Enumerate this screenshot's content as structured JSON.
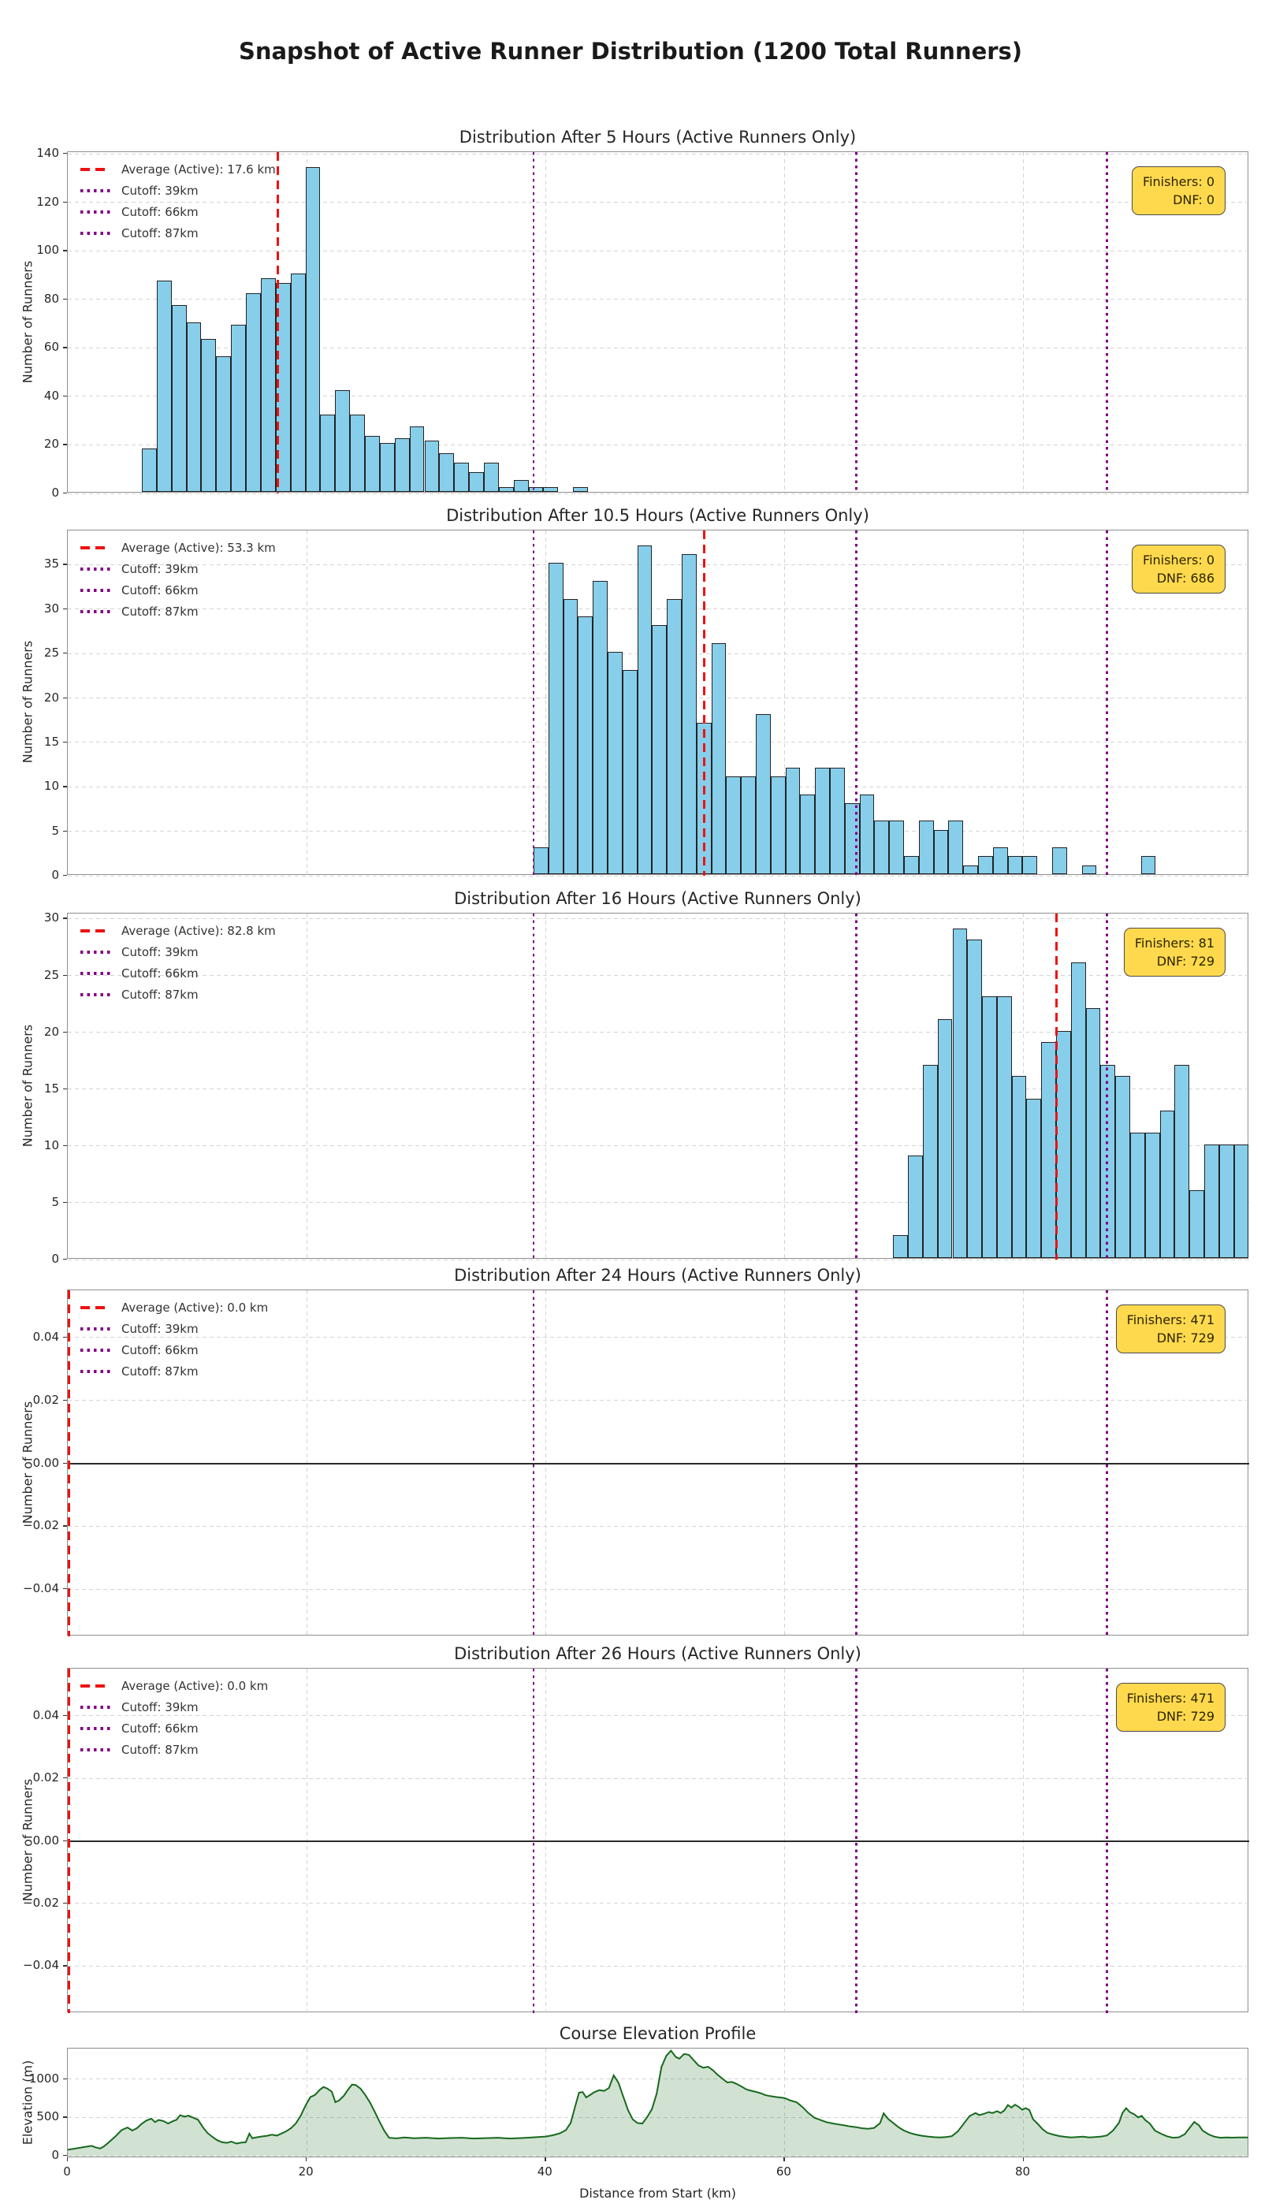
{
  "figure": {
    "title": "Snapshot of Active Runner Distribution (1200 Total Runners)",
    "total_runners": 1200
  },
  "axis": {
    "x_min_km": 0,
    "x_max_km": 98.9,
    "cutoffs_km": [
      39,
      66,
      87
    ],
    "x_grid_km": [
      20,
      40,
      60,
      80
    ]
  },
  "colors": {
    "bar_fill": "#87CEEB",
    "bar_edge": "#232323",
    "average_line": "#ee1111",
    "cutoff_line": "#800080",
    "box_bg": "#FFD94D",
    "area_line": "#17691d",
    "area_fill": "#2f7d32",
    "grid": "#d4d4d4",
    "spine": "#8f8f8f"
  },
  "chart_data": [
    {
      "type": "histogram",
      "title": "Distribution After 5 Hours (Active Runners Only)",
      "ylabel": "Number of Runners",
      "ylim": [
        0,
        140.7
      ],
      "y_ticks": [
        0,
        20,
        40,
        60,
        80,
        100,
        120,
        140
      ],
      "y_tick_labels": [
        "0",
        "20",
        "40",
        "60",
        "80",
        "100",
        "120",
        "140"
      ],
      "bin_start_km": 6.2,
      "bin_width_km": 1.245,
      "values": [
        18,
        87,
        77,
        70,
        63,
        56,
        69,
        82,
        88,
        86,
        90,
        134,
        32,
        42,
        32,
        23,
        20,
        22,
        27,
        21,
        16,
        12,
        8,
        12,
        2,
        5,
        2,
        2,
        0,
        2
      ],
      "average_km": 17.6,
      "legend": [
        "Average (Active): 17.6 km",
        "Cutoff: 39km",
        "Cutoff: 66km",
        "Cutoff: 87km"
      ],
      "finishers_label": "Finishers: 0",
      "dnf_label": "DNF: 0",
      "zero_line": false
    },
    {
      "type": "histogram",
      "title": "Distribution After 10.5 Hours (Active Runners Only)",
      "ylabel": "Number of Runners",
      "ylim": [
        0,
        38.85
      ],
      "y_ticks": [
        0,
        5,
        10,
        15,
        20,
        25,
        30,
        35
      ],
      "y_tick_labels": [
        "0",
        "5",
        "10",
        "15",
        "20",
        "25",
        "30",
        "35"
      ],
      "bin_start_km": 39.0,
      "bin_width_km": 1.24,
      "values": [
        3,
        35,
        31,
        29,
        33,
        25,
        23,
        37,
        28,
        31,
        36,
        17,
        26,
        11,
        11,
        18,
        11,
        12,
        9,
        12,
        12,
        8,
        9,
        6,
        6,
        2,
        6,
        5,
        6,
        1,
        2,
        3,
        2,
        2,
        0,
        3,
        0,
        1,
        0,
        0,
        0,
        2
      ],
      "average_km": 53.3,
      "legend": [
        "Average (Active): 53.3 km",
        "Cutoff: 39km",
        "Cutoff: 66km",
        "Cutoff: 87km"
      ],
      "finishers_label": "Finishers: 0",
      "dnf_label": "DNF: 686",
      "zero_line": false
    },
    {
      "type": "histogram",
      "title": "Distribution After 16 Hours (Active Runners Only)",
      "ylabel": "Number of Runners",
      "ylim": [
        0,
        30.45
      ],
      "y_ticks": [
        0,
        5,
        10,
        15,
        20,
        25,
        30
      ],
      "y_tick_labels": [
        "0",
        "5",
        "10",
        "15",
        "20",
        "25",
        "30"
      ],
      "bin_start_km": 69.1,
      "bin_width_km": 1.24,
      "values": [
        2,
        9,
        17,
        21,
        29,
        28,
        23,
        23,
        16,
        14,
        19,
        20,
        26,
        22,
        17,
        16,
        11,
        11,
        13,
        17,
        6,
        10,
        10,
        10
      ],
      "average_km": 82.8,
      "legend": [
        "Average (Active): 82.8 km",
        "Cutoff: 39km",
        "Cutoff: 66km",
        "Cutoff: 87km"
      ],
      "finishers_label": "Finishers: 81",
      "dnf_label": "DNF: 729",
      "zero_line": false
    },
    {
      "type": "histogram",
      "title": "Distribution After 24 Hours (Active Runners Only)",
      "ylabel": "Number of Runners",
      "ylim": [
        -0.055,
        0.055
      ],
      "y_ticks": [
        -0.04,
        -0.02,
        0,
        0.02,
        0.04
      ],
      "y_tick_labels": [
        "−0.04",
        "−0.02",
        "0.00",
        "0.02",
        "0.04"
      ],
      "bin_start_km": 0,
      "bin_width_km": 1,
      "values": [],
      "average_km": 0.0,
      "legend": [
        "Average (Active): 0.0 km",
        "Cutoff: 39km",
        "Cutoff: 66km",
        "Cutoff: 87km"
      ],
      "finishers_label": "Finishers: 471",
      "dnf_label": "DNF: 729",
      "zero_line": true
    },
    {
      "type": "histogram",
      "title": "Distribution After 26 Hours (Active Runners Only)",
      "ylabel": "Number of Runners",
      "ylim": [
        -0.055,
        0.055
      ],
      "y_ticks": [
        -0.04,
        -0.02,
        0,
        0.02,
        0.04
      ],
      "y_tick_labels": [
        "−0.04",
        "−0.02",
        "0.00",
        "0.02",
        "0.04"
      ],
      "bin_start_km": 0,
      "bin_width_km": 1,
      "values": [],
      "average_km": 0.0,
      "legend": [
        "Average (Active): 0.0 km",
        "Cutoff: 39km",
        "Cutoff: 66km",
        "Cutoff: 87km"
      ],
      "finishers_label": "Finishers: 471",
      "dnf_label": "DNF: 729",
      "zero_line": true
    },
    {
      "type": "area",
      "title": "Course Elevation Profile",
      "xlabel": "Distance from Start (km)",
      "ylabel": "Elevation (m)",
      "ylim": [
        -30,
        1400
      ],
      "y_ticks": [
        0,
        500,
        1000
      ],
      "y_tick_labels": [
        "0",
        "500",
        "1000"
      ],
      "x_ticks": [
        0,
        20,
        40,
        60,
        80
      ],
      "x_tick_labels": [
        "0",
        "20",
        "40",
        "60",
        "80"
      ],
      "points": [
        [
          0,
          80
        ],
        [
          0.5,
          92
        ],
        [
          1,
          105
        ],
        [
          1.5,
          118
        ],
        [
          2,
          130
        ],
        [
          2.3,
          112
        ],
        [
          2.7,
          95
        ],
        [
          3,
          120
        ],
        [
          3.5,
          185
        ],
        [
          4,
          255
        ],
        [
          4.5,
          335
        ],
        [
          5,
          370
        ],
        [
          5.4,
          330
        ],
        [
          5.8,
          362
        ],
        [
          6.2,
          420
        ],
        [
          6.6,
          462
        ],
        [
          7,
          485
        ],
        [
          7.3,
          440
        ],
        [
          7.6,
          468
        ],
        [
          8,
          455
        ],
        [
          8.4,
          422
        ],
        [
          8.8,
          452
        ],
        [
          9.1,
          470
        ],
        [
          9.4,
          530
        ],
        [
          9.8,
          512
        ],
        [
          10.1,
          525
        ],
        [
          10.5,
          498
        ],
        [
          10.9,
          472
        ],
        [
          11.3,
          375
        ],
        [
          11.7,
          298
        ],
        [
          12.1,
          248
        ],
        [
          12.5,
          205
        ],
        [
          12.9,
          178
        ],
        [
          13.3,
          170
        ],
        [
          13.7,
          186
        ],
        [
          14.1,
          160
        ],
        [
          14.5,
          172
        ],
        [
          14.9,
          178
        ],
        [
          15.2,
          290
        ],
        [
          15.45,
          228
        ],
        [
          15.8,
          242
        ],
        [
          16.2,
          252
        ],
        [
          16.7,
          262
        ],
        [
          17.1,
          276
        ],
        [
          17.5,
          264
        ],
        [
          17.9,
          292
        ],
        [
          18.3,
          322
        ],
        [
          18.7,
          362
        ],
        [
          19.1,
          425
        ],
        [
          19.5,
          525
        ],
        [
          19.9,
          655
        ],
        [
          20.3,
          765
        ],
        [
          20.7,
          795
        ],
        [
          21.1,
          862
        ],
        [
          21.4,
          898
        ],
        [
          21.7,
          880
        ],
        [
          22.1,
          838
        ],
        [
          22.4,
          700
        ],
        [
          22.7,
          722
        ],
        [
          23.1,
          782
        ],
        [
          23.5,
          872
        ],
        [
          23.8,
          930
        ],
        [
          24.1,
          925
        ],
        [
          24.5,
          878
        ],
        [
          24.9,
          795
        ],
        [
          25.3,
          695
        ],
        [
          25.7,
          575
        ],
        [
          26.1,
          445
        ],
        [
          26.5,
          325
        ],
        [
          26.9,
          235
        ],
        [
          27.5,
          228
        ],
        [
          28.2,
          240
        ],
        [
          29,
          230
        ],
        [
          30,
          236
        ],
        [
          31,
          226
        ],
        [
          32,
          232
        ],
        [
          33,
          236
        ],
        [
          34,
          226
        ],
        [
          35,
          231
        ],
        [
          36,
          236
        ],
        [
          37,
          226
        ],
        [
          38,
          232
        ],
        [
          39,
          242
        ],
        [
          40,
          252
        ],
        [
          40.6,
          268
        ],
        [
          41.2,
          295
        ],
        [
          41.7,
          335
        ],
        [
          42.1,
          430
        ],
        [
          42.5,
          660
        ],
        [
          42.8,
          825
        ],
        [
          43.1,
          832
        ],
        [
          43.4,
          762
        ],
        [
          43.7,
          792
        ],
        [
          44.1,
          832
        ],
        [
          44.5,
          858
        ],
        [
          44.9,
          848
        ],
        [
          45.3,
          885
        ],
        [
          45.7,
          1050
        ],
        [
          46.1,
          955
        ],
        [
          46.5,
          775
        ],
        [
          46.9,
          595
        ],
        [
          47.3,
          475
        ],
        [
          47.7,
          428
        ],
        [
          48.1,
          422
        ],
        [
          48.5,
          505
        ],
        [
          48.9,
          610
        ],
        [
          49.3,
          810
        ],
        [
          49.7,
          1160
        ],
        [
          50.1,
          1305
        ],
        [
          50.5,
          1372
        ],
        [
          50.9,
          1290
        ],
        [
          51.2,
          1268
        ],
        [
          51.6,
          1330
        ],
        [
          52,
          1318
        ],
        [
          52.4,
          1248
        ],
        [
          52.8,
          1180
        ],
        [
          53.2,
          1150
        ],
        [
          53.6,
          1162
        ],
        [
          54,
          1118
        ],
        [
          54.4,
          1058
        ],
        [
          54.8,
          1008
        ],
        [
          55.2,
          958
        ],
        [
          55.6,
          965
        ],
        [
          56,
          938
        ],
        [
          56.4,
          905
        ],
        [
          56.8,
          868
        ],
        [
          57.2,
          850
        ],
        [
          57.6,
          835
        ],
        [
          58,
          818
        ],
        [
          58.4,
          792
        ],
        [
          58.8,
          780
        ],
        [
          59.2,
          770
        ],
        [
          59.6,
          762
        ],
        [
          60,
          755
        ],
        [
          60.5,
          722
        ],
        [
          61,
          700
        ],
        [
          61.5,
          638
        ],
        [
          62,
          558
        ],
        [
          62.5,
          498
        ],
        [
          63,
          468
        ],
        [
          63.5,
          440
        ],
        [
          64,
          424
        ],
        [
          64.5,
          410
        ],
        [
          65,
          398
        ],
        [
          65.5,
          384
        ],
        [
          66,
          374
        ],
        [
          66.5,
          360
        ],
        [
          67,
          354
        ],
        [
          67.5,
          364
        ],
        [
          68,
          428
        ],
        [
          68.3,
          555
        ],
        [
          68.7,
          478
        ],
        [
          69.1,
          430
        ],
        [
          69.5,
          378
        ],
        [
          70,
          330
        ],
        [
          70.5,
          298
        ],
        [
          71,
          278
        ],
        [
          71.5,
          262
        ],
        [
          72,
          252
        ],
        [
          72.5,
          244
        ],
        [
          73,
          240
        ],
        [
          73.5,
          246
        ],
        [
          74,
          256
        ],
        [
          74.5,
          318
        ],
        [
          75,
          420
        ],
        [
          75.5,
          520
        ],
        [
          76,
          558
        ],
        [
          76.3,
          532
        ],
        [
          76.7,
          548
        ],
        [
          77.1,
          572
        ],
        [
          77.4,
          558
        ],
        [
          77.8,
          582
        ],
        [
          78.1,
          560
        ],
        [
          78.4,
          592
        ],
        [
          78.7,
          662
        ],
        [
          79,
          630
        ],
        [
          79.3,
          668
        ],
        [
          79.6,
          640
        ],
        [
          79.9,
          602
        ],
        [
          80.2,
          622
        ],
        [
          80.5,
          598
        ],
        [
          80.8,
          478
        ],
        [
          81.2,
          418
        ],
        [
          81.6,
          348
        ],
        [
          82,
          300
        ],
        [
          82.5,
          278
        ],
        [
          83,
          258
        ],
        [
          83.5,
          248
        ],
        [
          84,
          240
        ],
        [
          84.5,
          246
        ],
        [
          85,
          250
        ],
        [
          85.5,
          240
        ],
        [
          86,
          246
        ],
        [
          86.5,
          252
        ],
        [
          87,
          266
        ],
        [
          87.5,
          330
        ],
        [
          88,
          432
        ],
        [
          88.3,
          562
        ],
        [
          88.6,
          622
        ],
        [
          88.9,
          572
        ],
        [
          89.3,
          540
        ],
        [
          89.6,
          502
        ],
        [
          89.9,
          522
        ],
        [
          90.2,
          468
        ],
        [
          90.6,
          418
        ],
        [
          91,
          330
        ],
        [
          91.5,
          290
        ],
        [
          92,
          256
        ],
        [
          92.5,
          236
        ],
        [
          93,
          242
        ],
        [
          93.5,
          282
        ],
        [
          94,
          382
        ],
        [
          94.3,
          442
        ],
        [
          94.7,
          398
        ],
        [
          95,
          330
        ],
        [
          95.5,
          280
        ],
        [
          96,
          250
        ],
        [
          96.5,
          236
        ],
        [
          97,
          240
        ],
        [
          97.5,
          237
        ],
        [
          98,
          240
        ],
        [
          98.8,
          240
        ]
      ]
    }
  ]
}
